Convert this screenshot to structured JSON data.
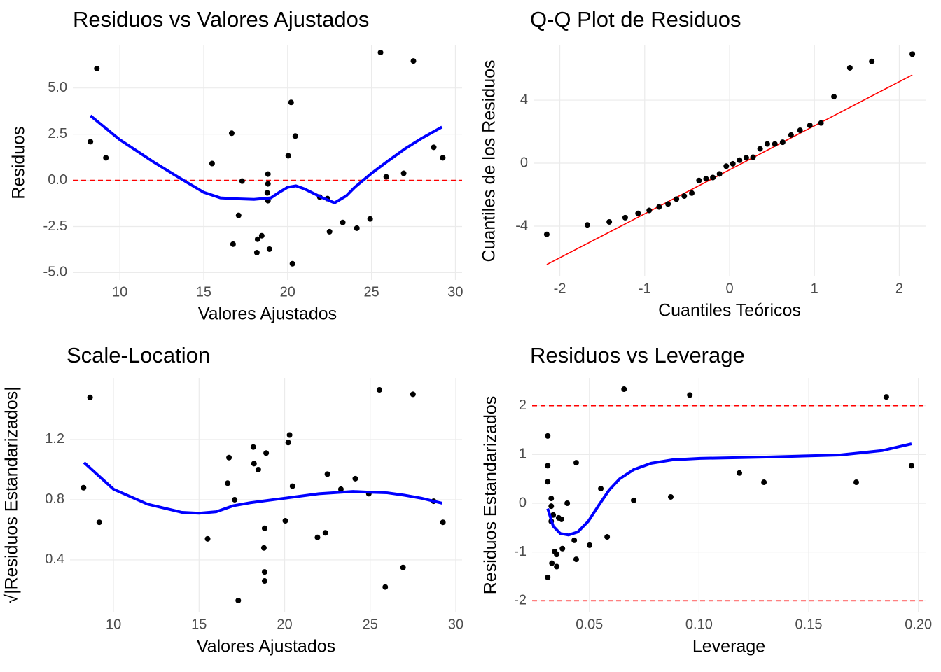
{
  "chart_data": [
    {
      "type": "scatter",
      "title": "Residuos vs Valores Ajustados",
      "x_label": "Valores Ajustados",
      "y_label": "Residuos",
      "x": [
        8.25,
        8.63,
        9.17,
        15.5,
        16.67,
        16.75,
        17.08,
        17.29,
        18.17,
        18.21,
        18.46,
        18.79,
        18.83,
        18.83,
        18.83,
        18.92,
        20.04,
        20.21,
        20.29,
        20.46,
        21.92,
        22.38,
        22.5,
        23.29,
        24.13,
        24.92,
        25.54,
        25.88,
        26.92,
        27.5,
        28.71,
        29.25
      ],
      "values": [
        2.09,
        6.05,
        1.22,
        0.91,
        2.55,
        -3.46,
        -1.9,
        -0.04,
        -3.92,
        -3.19,
        -3.0,
        -0.68,
        0.34,
        -0.19,
        -1.1,
        -3.73,
        1.33,
        4.22,
        -4.52,
        2.4,
        -0.91,
        -0.99,
        -2.78,
        -2.28,
        -2.59,
        -2.09,
        6.92,
        0.19,
        0.38,
        6.46,
        1.79,
        1.22
      ],
      "point_color": "#000000",
      "smooth": {
        "x": [
          8.25,
          10,
          12,
          13.8,
          15,
          16,
          17,
          18,
          19,
          19.5,
          20,
          20.5,
          21,
          22,
          22.8,
          23.5,
          24,
          25,
          26,
          27,
          28,
          29.2
        ],
        "values": [
          3.5,
          2.2,
          1.0,
          0.0,
          -0.65,
          -0.95,
          -1.0,
          -1.03,
          -0.95,
          -0.65,
          -0.38,
          -0.3,
          -0.46,
          -0.91,
          -1.22,
          -0.84,
          -0.38,
          0.38,
          1.06,
          1.71,
          2.28,
          2.89
        ],
        "color": "#0000ff"
      },
      "hlines": [
        0
      ],
      "hline_color": "#ff0000",
      "xlim": [
        7.2,
        30.4
      ],
      "ylim": [
        -5.4,
        7.3
      ],
      "xticks": [
        10,
        15,
        20,
        25,
        30
      ],
      "yticks": [
        {
          "value": -5,
          "label": "-5.0"
        },
        -2.5,
        {
          "value": 0,
          "label": "0.0"
        },
        2.5,
        {
          "value": 5,
          "label": "5.0"
        }
      ],
      "grid": true
    },
    {
      "type": "scatter",
      "title": "Q-Q Plot de Residuos",
      "x_label": "Cuantiles Teóricos",
      "y_label": "Cuantiles de los Residuos",
      "x": [
        -2.154,
        -1.676,
        -1.418,
        -1.23,
        -1.078,
        -0.947,
        -0.831,
        -0.725,
        -0.626,
        -0.534,
        -0.445,
        -0.36,
        -0.277,
        -0.197,
        -0.118,
        -0.039,
        0.039,
        0.118,
        0.197,
        0.277,
        0.36,
        0.445,
        0.534,
        0.626,
        0.725,
        0.831,
        0.947,
        1.078,
        1.23,
        1.418,
        1.676,
        2.154
      ],
      "values": [
        -4.52,
        -3.92,
        -3.73,
        -3.46,
        -3.19,
        -3.0,
        -2.78,
        -2.59,
        -2.28,
        -2.09,
        -1.9,
        -1.1,
        -0.99,
        -0.91,
        -0.68,
        -0.19,
        -0.04,
        0.19,
        0.34,
        0.38,
        0.91,
        1.22,
        1.22,
        1.33,
        1.79,
        2.09,
        2.4,
        2.55,
        4.22,
        6.05,
        6.46,
        6.92
      ],
      "point_color": "#000000",
      "ref_line": {
        "x": [
          -2.154,
          2.154
        ],
        "values": [
          -6.44,
          5.6
        ],
        "color": "#ff0000"
      },
      "xlim": [
        -2.31,
        2.31
      ],
      "ylim": [
        -7.2,
        7.47
      ],
      "xticks": [
        -2,
        -1,
        0,
        1,
        2
      ],
      "yticks": [
        -4,
        0,
        4
      ],
      "grid": true
    },
    {
      "type": "scatter",
      "title": "Scale-Location",
      "x_label": "Valores Ajustados",
      "y_label": "√|Residuos Estandarizados|",
      "x": [
        8.25,
        8.63,
        9.17,
        15.5,
        16.67,
        16.75,
        17.08,
        17.29,
        18.17,
        18.21,
        18.46,
        18.79,
        18.83,
        18.83,
        18.83,
        18.92,
        20.04,
        20.21,
        20.29,
        20.46,
        21.92,
        22.38,
        22.5,
        23.29,
        24.13,
        24.92,
        25.54,
        25.88,
        26.92,
        27.5,
        28.71,
        29.25
      ],
      "values": [
        0.88,
        1.48,
        0.65,
        0.54,
        0.91,
        1.08,
        0.8,
        0.13,
        1.15,
        1.04,
        1.0,
        0.48,
        0.32,
        0.26,
        0.61,
        1.11,
        0.66,
        1.18,
        1.23,
        0.89,
        0.55,
        0.58,
        0.97,
        0.87,
        0.94,
        0.84,
        1.53,
        0.22,
        0.35,
        1.5,
        0.79,
        0.65
      ],
      "point_color": "#000000",
      "smooth": {
        "x": [
          8.28,
          10,
          12,
          14,
          15,
          16,
          17,
          18,
          20,
          22,
          24,
          25,
          26,
          27,
          28,
          29.2
        ],
        "values": [
          1.047,
          0.87,
          0.77,
          0.716,
          0.71,
          0.72,
          0.76,
          0.78,
          0.81,
          0.84,
          0.855,
          0.85,
          0.846,
          0.83,
          0.81,
          0.777
        ],
        "color": "#0000ff"
      },
      "xlim": [
        7.46,
        30.37
      ],
      "ylim": [
        0.051,
        1.609
      ],
      "xticks": [
        10,
        15,
        20,
        25,
        30
      ],
      "yticks": [
        0.4,
        0.8,
        1.2
      ],
      "grid": true
    },
    {
      "type": "scatter",
      "title": "Residuos vs Leverage",
      "x_label": "Leverage",
      "y_label": "Residuos Estandarizados",
      "x": [
        0.031,
        0.031,
        0.031,
        0.031,
        0.0326,
        0.0326,
        0.0326,
        0.0329,
        0.0335,
        0.0342,
        0.0351,
        0.0351,
        0.036,
        0.0373,
        0.0377,
        0.0399,
        0.0431,
        0.044,
        0.044,
        0.0501,
        0.0552,
        0.0581,
        0.0658,
        0.0702,
        0.0871,
        0.0958,
        0.1184,
        0.1296,
        0.1717,
        0.1854,
        0.1969
      ],
      "values": [
        -1.52,
        1.38,
        0.77,
        0.44,
        0.1,
        -0.06,
        -0.37,
        -1.23,
        -0.24,
        -0.99,
        -1.3,
        -1.05,
        -0.3,
        -0.33,
        -0.93,
        0.0,
        -0.76,
        0.83,
        -1.15,
        -0.86,
        0.3,
        -0.69,
        2.34,
        0.06,
        0.13,
        2.22,
        0.62,
        0.43,
        0.43,
        2.18,
        0.77
      ],
      "point_color": "#000000",
      "smooth": {
        "x": [
          0.031,
          0.0335,
          0.0367,
          0.0405,
          0.0447,
          0.0495,
          0.0543,
          0.059,
          0.0638,
          0.0702,
          0.0782,
          0.0878,
          0.1005,
          0.1325,
          0.1644,
          0.1835,
          0.1969
        ],
        "values": [
          -0.11,
          -0.47,
          -0.62,
          -0.65,
          -0.59,
          -0.37,
          -0.04,
          0.27,
          0.5,
          0.69,
          0.82,
          0.89,
          0.92,
          0.95,
          0.99,
          1.08,
          1.22
        ],
        "color": "#0000ff"
      },
      "hlines": [
        2,
        -2
      ],
      "hline_color": "#ff0000",
      "xlim": [
        0.0239,
        0.2033
      ],
      "ylim": [
        -2.24,
        2.57
      ],
      "xticks": [
        0.05,
        {
          "value": 0.1,
          "label": "0.10"
        },
        0.15,
        {
          "value": 0.2,
          "label": "0.20"
        }
      ],
      "yticks": [
        -2,
        -1,
        0,
        1,
        2
      ],
      "grid": true
    }
  ]
}
